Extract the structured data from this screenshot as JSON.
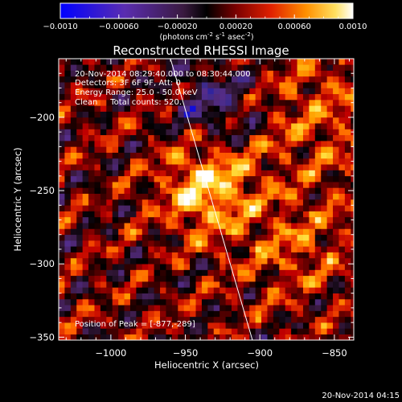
{
  "colorbar": {
    "tick_labels": [
      "-0.0010",
      "-0.00060",
      "-0.00020",
      "0.00020",
      "0.00060",
      "0.0010"
    ],
    "vmin": -0.001,
    "vmax": 0.001,
    "units_prefix": "(photons cm",
    "units_exp1": "-2",
    "units_mid1": " s",
    "units_exp2": "-1",
    "units_mid2": " asec",
    "units_exp3": "-2",
    "units_suffix": ")"
  },
  "chart_data": {
    "type": "heatmap",
    "title": "Reconstructed RHESSI Image",
    "xlabel": "Heliocentric X (arcsec)",
    "ylabel": "Heliocentric Y (arcsec)",
    "xlim": [
      -1035,
      -837
    ],
    "ylim": [
      -352,
      -160
    ],
    "x_ticks": [
      -1000,
      -950,
      -900,
      -850
    ],
    "x_tick_labels": [
      "-1000",
      "-950",
      "-900",
      "-850"
    ],
    "y_ticks": [
      -200,
      -250,
      -300,
      -350
    ],
    "y_tick_labels": [
      "-200",
      "-250",
      "-300",
      "-350"
    ],
    "colormap": "red-temperature",
    "colormap_stops": [
      "#0000ff",
      "#3a2a8c",
      "#552d8a",
      "#3a1a40",
      "#000000",
      "#5a0000",
      "#c00000",
      "#ff5a00",
      "#ffa000",
      "#ffe040",
      "#ffffff"
    ],
    "peak": [
      -877,
      -289
    ],
    "limb_line": [
      [
        -960,
        -160
      ],
      [
        -905,
        -352
      ]
    ],
    "annotations": [
      "20-Nov-2014 08:29:40.000 to 08:30:44.000",
      "Detectors: 3F 6F 9F, Att: 0",
      "Energy Range: 25.0 - 50.0 keV",
      "Clean     Total counts: 520."
    ],
    "peak_label": "Position of Peak = [-877,-289]"
  },
  "timestamp": "20-Nov-2014 04:15"
}
